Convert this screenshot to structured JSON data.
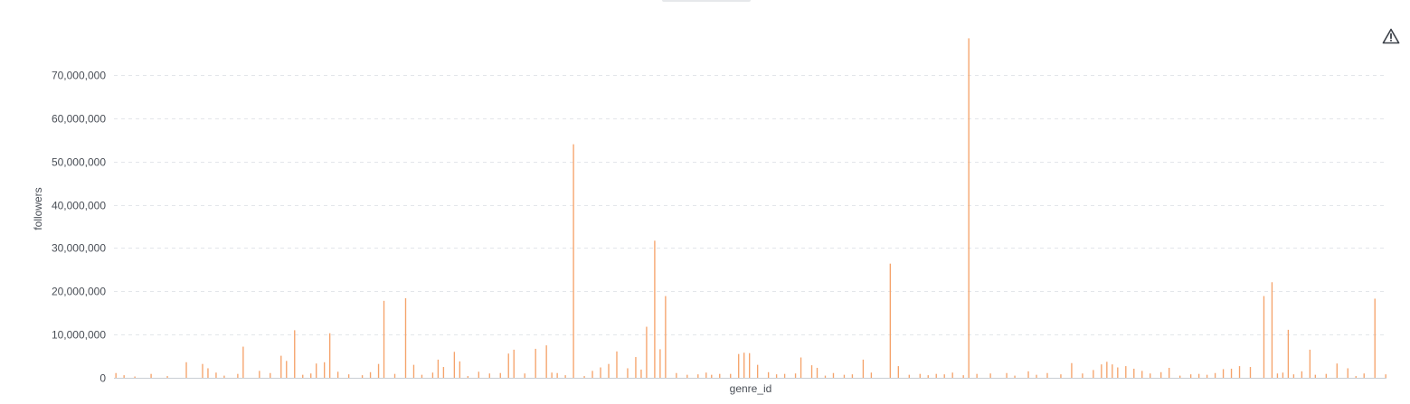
{
  "colors": {
    "bar": "#f5a36b",
    "warning_icon": "#3b4048"
  },
  "warning_icon": "warning-triangle-icon",
  "chart_data": {
    "type": "bar",
    "title": "",
    "xlabel": "genre_id",
    "ylabel": "followers",
    "ylim": [
      0,
      79000000
    ],
    "yticks": [
      0,
      10000000,
      20000000,
      30000000,
      40000000,
      50000000,
      60000000,
      70000000
    ],
    "ytick_labels": [
      "0",
      "10,000,000",
      "20,000,000",
      "30,000,000",
      "40,000,000",
      "50,000,000",
      "60,000,000",
      "70,000,000"
    ],
    "grid": true,
    "category_count": 470,
    "bars": [
      [
        1,
        1100000
      ],
      [
        4,
        600000
      ],
      [
        8,
        300000
      ],
      [
        14,
        900000
      ],
      [
        20,
        400000
      ],
      [
        27,
        3600000
      ],
      [
        33,
        3200000
      ],
      [
        35,
        2200000
      ],
      [
        38,
        1200000
      ],
      [
        41,
        500000
      ],
      [
        46,
        900000
      ],
      [
        48,
        7200000
      ],
      [
        54,
        1600000
      ],
      [
        58,
        1100000
      ],
      [
        62,
        5100000
      ],
      [
        64,
        3900000
      ],
      [
        67,
        11000000
      ],
      [
        70,
        700000
      ],
      [
        73,
        1000000
      ],
      [
        75,
        3300000
      ],
      [
        78,
        3600000
      ],
      [
        80,
        10300000
      ],
      [
        83,
        1400000
      ],
      [
        87,
        800000
      ],
      [
        92,
        600000
      ],
      [
        95,
        1300000
      ],
      [
        98,
        3200000
      ],
      [
        100,
        17800000
      ],
      [
        104,
        900000
      ],
      [
        108,
        18400000
      ],
      [
        111,
        3000000
      ],
      [
        114,
        700000
      ],
      [
        118,
        1200000
      ],
      [
        120,
        4200000
      ],
      [
        122,
        2500000
      ],
      [
        126,
        6000000
      ],
      [
        128,
        3800000
      ],
      [
        131,
        400000
      ],
      [
        135,
        1400000
      ],
      [
        139,
        1000000
      ],
      [
        143,
        1100000
      ],
      [
        146,
        5600000
      ],
      [
        148,
        6500000
      ],
      [
        152,
        1000000
      ],
      [
        156,
        6700000
      ],
      [
        160,
        7500000
      ],
      [
        162,
        1200000
      ],
      [
        164,
        1100000
      ],
      [
        167,
        600000
      ],
      [
        170,
        54000000
      ],
      [
        174,
        400000
      ],
      [
        177,
        1600000
      ],
      [
        180,
        2400000
      ],
      [
        183,
        3200000
      ],
      [
        186,
        6100000
      ],
      [
        190,
        2200000
      ],
      [
        193,
        4800000
      ],
      [
        195,
        1900000
      ],
      [
        197,
        11800000
      ],
      [
        200,
        31700000
      ],
      [
        202,
        6600000
      ],
      [
        204,
        18900000
      ],
      [
        208,
        1100000
      ],
      [
        212,
        700000
      ],
      [
        216,
        800000
      ],
      [
        219,
        1200000
      ],
      [
        221,
        700000
      ],
      [
        224,
        900000
      ],
      [
        228,
        900000
      ],
      [
        231,
        5500000
      ],
      [
        233,
        5800000
      ],
      [
        235,
        5700000
      ],
      [
        238,
        3000000
      ],
      [
        242,
        1300000
      ],
      [
        245,
        800000
      ],
      [
        248,
        900000
      ],
      [
        252,
        1000000
      ],
      [
        254,
        4700000
      ],
      [
        258,
        2900000
      ],
      [
        260,
        2300000
      ],
      [
        263,
        500000
      ],
      [
        266,
        1100000
      ],
      [
        270,
        700000
      ],
      [
        273,
        800000
      ],
      [
        277,
        4200000
      ],
      [
        280,
        1200000
      ],
      [
        287,
        26400000
      ],
      [
        290,
        2700000
      ],
      [
        294,
        700000
      ],
      [
        298,
        900000
      ],
      [
        301,
        600000
      ],
      [
        304,
        900000
      ],
      [
        307,
        800000
      ],
      [
        310,
        1200000
      ],
      [
        314,
        600000
      ],
      [
        316,
        78500000
      ],
      [
        319,
        900000
      ],
      [
        324,
        1000000
      ],
      [
        330,
        1100000
      ],
      [
        333,
        500000
      ],
      [
        338,
        1500000
      ],
      [
        341,
        700000
      ],
      [
        345,
        1100000
      ],
      [
        350,
        800000
      ],
      [
        354,
        3400000
      ],
      [
        358,
        1000000
      ],
      [
        362,
        1800000
      ],
      [
        365,
        3100000
      ],
      [
        367,
        3700000
      ],
      [
        369,
        3100000
      ],
      [
        371,
        2400000
      ],
      [
        374,
        2700000
      ],
      [
        377,
        2100000
      ],
      [
        380,
        1600000
      ],
      [
        383,
        1000000
      ],
      [
        387,
        1300000
      ],
      [
        390,
        2300000
      ],
      [
        394,
        500000
      ],
      [
        398,
        800000
      ],
      [
        401,
        900000
      ],
      [
        404,
        700000
      ],
      [
        407,
        1100000
      ],
      [
        410,
        2000000
      ],
      [
        413,
        2100000
      ],
      [
        416,
        2700000
      ],
      [
        420,
        2500000
      ],
      [
        425,
        18900000
      ],
      [
        428,
        22100000
      ],
      [
        430,
        1000000
      ],
      [
        432,
        1200000
      ],
      [
        434,
        11100000
      ],
      [
        436,
        800000
      ],
      [
        439,
        1500000
      ],
      [
        442,
        6500000
      ],
      [
        444,
        700000
      ],
      [
        448,
        900000
      ],
      [
        452,
        3300000
      ],
      [
        456,
        2200000
      ],
      [
        459,
        400000
      ],
      [
        462,
        1000000
      ],
      [
        466,
        18300000
      ],
      [
        470,
        800000
      ]
    ]
  }
}
